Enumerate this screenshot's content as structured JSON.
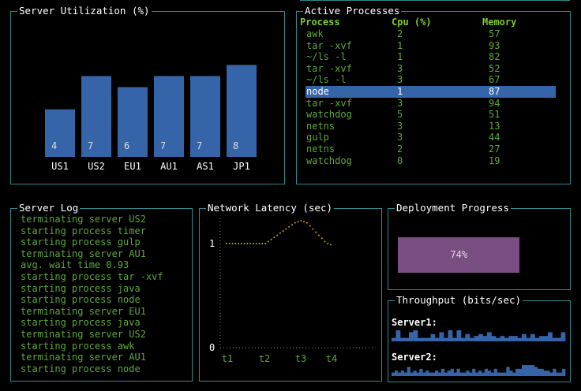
{
  "server_util": {
    "title": "Server Utilization (%)",
    "chart_data": {
      "type": "bar",
      "title": "Server Utilization (%)",
      "categories": [
        "US1",
        "US2",
        "EU1",
        "AU1",
        "AS1",
        "JP1"
      ],
      "values": [
        4,
        7,
        6,
        7,
        7,
        8
      ],
      "ylim": [
        0,
        9
      ],
      "bar_color": "#3565a8"
    }
  },
  "processes": {
    "title": "Active Processes",
    "headers": [
      "Process",
      "Cpu (%)",
      "Memory"
    ],
    "rows": [
      [
        "awk",
        "2",
        "57"
      ],
      [
        "tar -xvf",
        "1",
        "93"
      ],
      [
        "~/ls -l",
        "1",
        "82"
      ],
      [
        "tar -xvf",
        "3",
        "52"
      ],
      [
        "~/ls -l",
        "3",
        "67"
      ],
      [
        "node",
        "1",
        "87"
      ],
      [
        "tar -xvf",
        "3",
        "94"
      ],
      [
        "watchdog",
        "5",
        "51"
      ],
      [
        "netns",
        "3",
        "13"
      ],
      [
        "gulp",
        "3",
        "44"
      ],
      [
        "netns",
        "2",
        "27"
      ],
      [
        "watchdog",
        "0",
        "19"
      ]
    ],
    "selected_index": 5
  },
  "server_log": {
    "title": "Server Log",
    "lines": [
      "terminating server US2",
      "starting process timer",
      "starting process gulp",
      "terminating server AU1",
      "avg. wait time 0.93",
      "starting process tar -xvf",
      "starting process java",
      "starting process node",
      "terminating server EU1",
      "starting process java",
      "terminating server US2",
      "starting process awk",
      "terminating server AU1",
      "starting process node"
    ]
  },
  "latency": {
    "title": "Network Latency (sec)",
    "chart_data": {
      "type": "line",
      "title": "Network Latency (sec)",
      "x_ticks": [
        "t1",
        "t2",
        "t3",
        "t4"
      ],
      "y_ticks": [
        "1",
        "0"
      ],
      "ylim": [
        0,
        1.3
      ],
      "values": [
        1.0,
        1.0,
        1.0,
        1.0,
        1.0,
        1.0,
        1.0,
        1.0,
        1.0,
        1.0,
        1.0,
        1.0,
        1.0,
        1.0,
        1.02,
        1.04,
        1.06,
        1.08,
        1.1,
        1.12,
        1.14,
        1.16,
        1.18,
        1.2,
        1.21,
        1.22,
        1.21,
        1.2,
        1.17,
        1.14,
        1.11,
        1.08,
        1.05,
        1.02,
        1.0,
        0.99
      ],
      "line_color": "#d4a017"
    }
  },
  "deployment": {
    "title": "Deployment Progress",
    "percent": 74,
    "label": "74%",
    "color": "#7a4e82"
  },
  "throughput": {
    "title": "Throughput (bits/sec)",
    "series": [
      {
        "name": "Server1:",
        "values": [
          1,
          5,
          1,
          1,
          4,
          5,
          1,
          1,
          1,
          3,
          1,
          4,
          1,
          5,
          1,
          5,
          1,
          3,
          1,
          2,
          3,
          2,
          4,
          2,
          1,
          2,
          1,
          2,
          2,
          1,
          3,
          1,
          3,
          1,
          2,
          2,
          4,
          1,
          1,
          4
        ]
      },
      {
        "name": "Server2:",
        "values": [
          1,
          2,
          1,
          2,
          1,
          4,
          1,
          2,
          1,
          3,
          1,
          2,
          1,
          1,
          2,
          1,
          3,
          1,
          2,
          3,
          1,
          3,
          1,
          1,
          2,
          1,
          3,
          1,
          2,
          1,
          3,
          2,
          1,
          3,
          1,
          1,
          1,
          4,
          2,
          1,
          3,
          3,
          5,
          5,
          5,
          5,
          4,
          3,
          3,
          2,
          2,
          1,
          3,
          1,
          1,
          3
        ]
      }
    ],
    "color": "#3565a8"
  }
}
